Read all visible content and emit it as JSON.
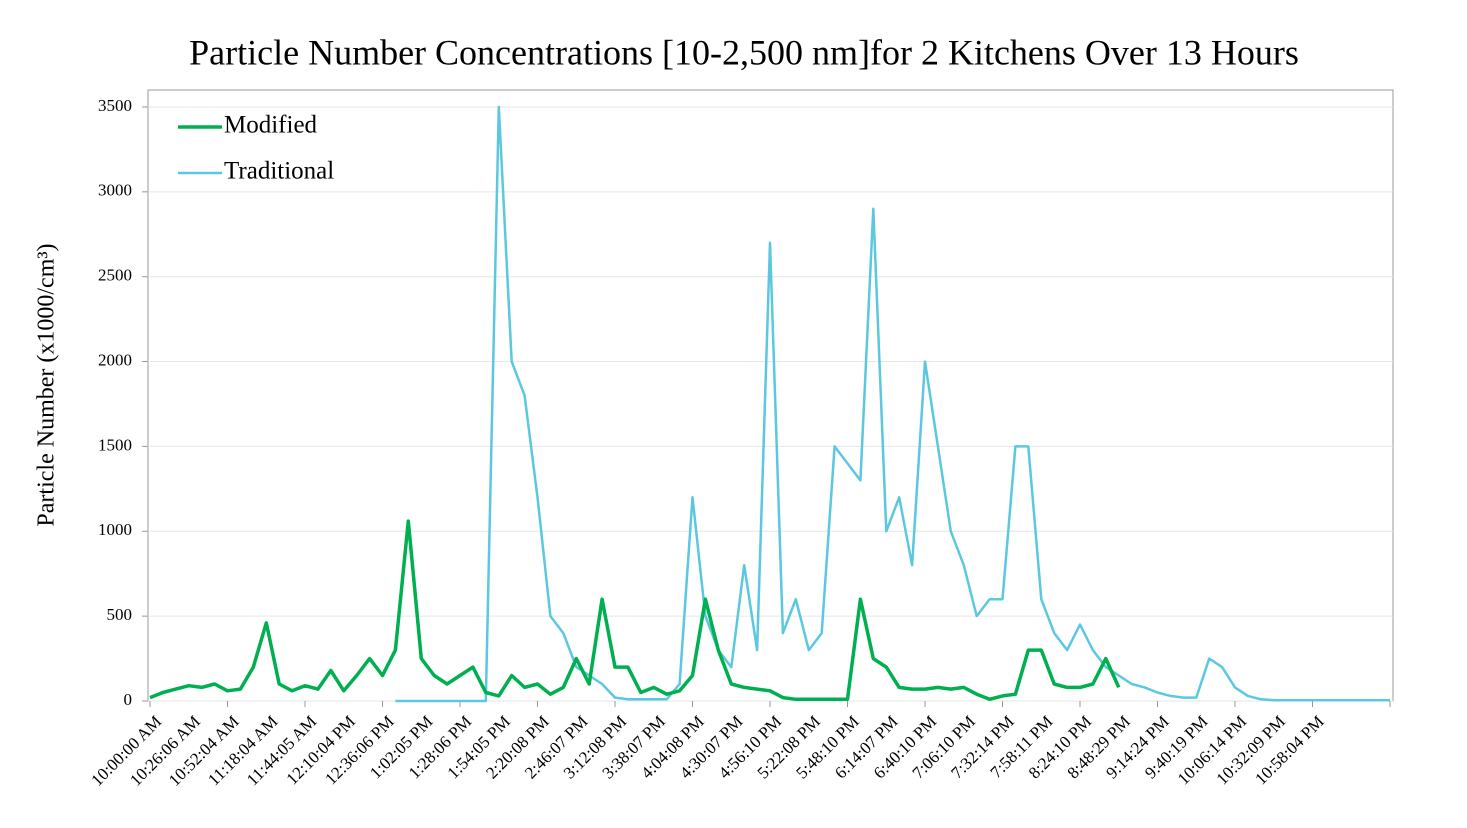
{
  "chart_data": {
    "type": "line",
    "title": "Particle Number Concentrations [10-2,500 nm]for 2 Kitchens Over 13 Hours",
    "y_label": "Particle Number (x1000/cm³)",
    "categories": [
      "10:00:00 AM",
      null,
      null,
      "10:26:06 AM",
      null,
      null,
      "10:52:04 AM",
      null,
      null,
      "11:18:04 AM",
      null,
      null,
      "11:44:05 AM",
      null,
      null,
      "12:10:04 PM",
      null,
      null,
      "12:36:06 PM",
      null,
      null,
      "1:02:05 PM",
      null,
      null,
      "1:28:06 PM",
      null,
      null,
      "1:54:05 PM",
      null,
      null,
      "2:20:08 PM",
      null,
      null,
      "2:46:07 PM",
      null,
      null,
      "3:12:08 PM",
      null,
      null,
      "3:38:07 PM",
      null,
      null,
      "4:04:08 PM",
      null,
      null,
      "4:30:07 PM",
      null,
      null,
      "4:56:10 PM",
      null,
      null,
      "5:22:08 PM",
      null,
      null,
      "5:48:10 PM",
      null,
      null,
      "6:14:07 PM",
      null,
      null,
      "6:40:10 PM",
      null,
      null,
      "7:06:10 PM",
      null,
      null,
      "7:32:14 PM",
      null,
      null,
      "7:58:11 PM",
      null,
      null,
      "8:24:10 PM",
      null,
      null,
      "8:48:29 PM",
      null,
      null,
      "9:14:24 PM",
      null,
      null,
      "9:40:19 PM",
      null,
      null,
      "10:06:14 PM",
      null,
      null,
      "10:32:09 PM",
      null,
      null,
      "10:58:04 PM",
      null,
      null,
      null,
      null,
      null,
      null
    ],
    "series": [
      {
        "name": "Modified",
        "color": "#00b050",
        "width": 3.5,
        "values": [
          20,
          50,
          70,
          90,
          80,
          100,
          60,
          70,
          200,
          460,
          100,
          60,
          90,
          70,
          180,
          60,
          150,
          250,
          150,
          300,
          1060,
          250,
          150,
          100,
          150,
          200,
          50,
          30,
          150,
          80,
          100,
          40,
          80,
          250,
          100,
          600,
          200,
          200,
          50,
          80,
          40,
          60,
          150,
          600,
          300,
          100,
          80,
          70,
          60,
          20,
          10,
          10,
          10,
          10,
          10,
          600,
          250,
          200,
          80,
          70,
          70,
          80,
          70,
          80,
          40,
          10,
          30,
          40,
          300,
          300,
          100,
          80,
          80,
          100,
          250,
          80,
          null,
          null,
          null,
          null,
          null,
          null,
          null,
          null,
          null,
          null,
          null,
          null,
          null,
          null,
          null,
          null,
          null,
          null,
          null,
          null,
          null
        ]
      },
      {
        "name": "Traditional",
        "color": "#5bc8e0",
        "width": 2.5,
        "values": [
          null,
          null,
          null,
          null,
          null,
          null,
          null,
          null,
          null,
          null,
          null,
          null,
          null,
          null,
          null,
          null,
          null,
          null,
          null,
          0,
          0,
          0,
          0,
          0,
          0,
          0,
          0,
          3500,
          2000,
          1800,
          1200,
          500,
          400,
          200,
          150,
          100,
          20,
          10,
          10,
          10,
          10,
          100,
          1200,
          500,
          300,
          200,
          800,
          300,
          2700,
          400,
          600,
          300,
          400,
          1500,
          1400,
          1300,
          2900,
          1000,
          1200,
          800,
          2000,
          1500,
          1000,
          800,
          500,
          600,
          600,
          1500,
          1500,
          600,
          400,
          300,
          450,
          300,
          200,
          150,
          100,
          80,
          50,
          30,
          20,
          20,
          250,
          200,
          80,
          30,
          10,
          5,
          5,
          5,
          5,
          5,
          5,
          5,
          5,
          5,
          5
        ]
      }
    ],
    "ylim": [
      0,
      3600
    ],
    "yticks": [
      0,
      500,
      1000,
      1500,
      2000,
      2500,
      3000,
      3500
    ],
    "grid": true,
    "legend": "upper left"
  }
}
